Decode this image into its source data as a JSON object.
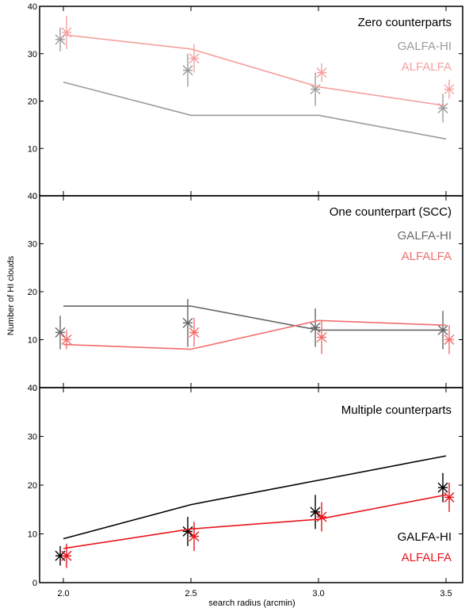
{
  "figure": {
    "xlabel": "search radius (arcmin)",
    "ylabel": "Number of HI clouds"
  },
  "chart_data": [
    {
      "type": "line",
      "title": "Zero counterparts",
      "x": [
        2.0,
        2.5,
        3.0,
        3.5
      ],
      "xticks": [
        "2.0",
        "2.5",
        "3.0",
        "3.5"
      ],
      "ylim": [
        0,
        40
      ],
      "yticks": [
        "0",
        "10",
        "20",
        "30",
        "40"
      ],
      "legend": [
        "GALFA-HI",
        "ALFALFA"
      ],
      "series": [
        {
          "name": "GALFA-HI",
          "color": "#9b9b9b",
          "line": [
            24,
            17,
            17,
            12
          ],
          "points": [
            33,
            26.5,
            22.5,
            18.5
          ],
          "err": [
            2.5,
            3.5,
            3.5,
            3
          ]
        },
        {
          "name": "ALFALFA",
          "color": "#f5a0a0",
          "line": [
            34,
            31,
            23,
            19
          ],
          "points": [
            34.5,
            29,
            26,
            22.5
          ],
          "err": [
            3.5,
            3,
            2,
            2
          ]
        }
      ]
    },
    {
      "type": "line",
      "title": "One counterpart (SCC)",
      "x": [
        2.0,
        2.5,
        3.0,
        3.5
      ],
      "xticks": [
        "2.0",
        "2.5",
        "3.0",
        "3.5"
      ],
      "ylim": [
        0,
        40
      ],
      "yticks": [
        "0",
        "10",
        "20",
        "30",
        "40"
      ],
      "legend": [
        "GALFA-HI",
        "ALFALFA"
      ],
      "series": [
        {
          "name": "GALFA-HI",
          "color": "#666666",
          "line": [
            17,
            17,
            12,
            12
          ],
          "points": [
            11.5,
            13.5,
            12.5,
            12
          ],
          "err": [
            3.5,
            5,
            4,
            4
          ]
        },
        {
          "name": "ALFALFA",
          "color": "#f26d6d",
          "line": [
            9,
            8,
            14,
            13
          ],
          "points": [
            10,
            11.5,
            10.5,
            10
          ],
          "err": [
            2,
            3,
            3.5,
            3
          ]
        }
      ]
    },
    {
      "type": "line",
      "title": "Multiple counterparts",
      "x": [
        2.0,
        2.5,
        3.0,
        3.5
      ],
      "xticks": [
        "2.0",
        "2.5",
        "3.0",
        "3.5"
      ],
      "ylim": [
        0,
        40
      ],
      "yticks": [
        "0",
        "10",
        "20",
        "30",
        "40"
      ],
      "legend": [
        "GALFA-HI",
        "ALFALFA"
      ],
      "series": [
        {
          "name": "GALFA-HI",
          "color": "#000000",
          "line": [
            9,
            16,
            21,
            26
          ],
          "points": [
            5.5,
            10.5,
            14.5,
            19.5
          ],
          "err": [
            2,
            3,
            3.5,
            3
          ]
        },
        {
          "name": "ALFALFA",
          "color": "#e8141b",
          "line": [
            7,
            11,
            13,
            18
          ],
          "points": [
            5.5,
            9.5,
            13.5,
            17.5
          ],
          "err": [
            2.5,
            3,
            3,
            3
          ]
        }
      ]
    }
  ]
}
